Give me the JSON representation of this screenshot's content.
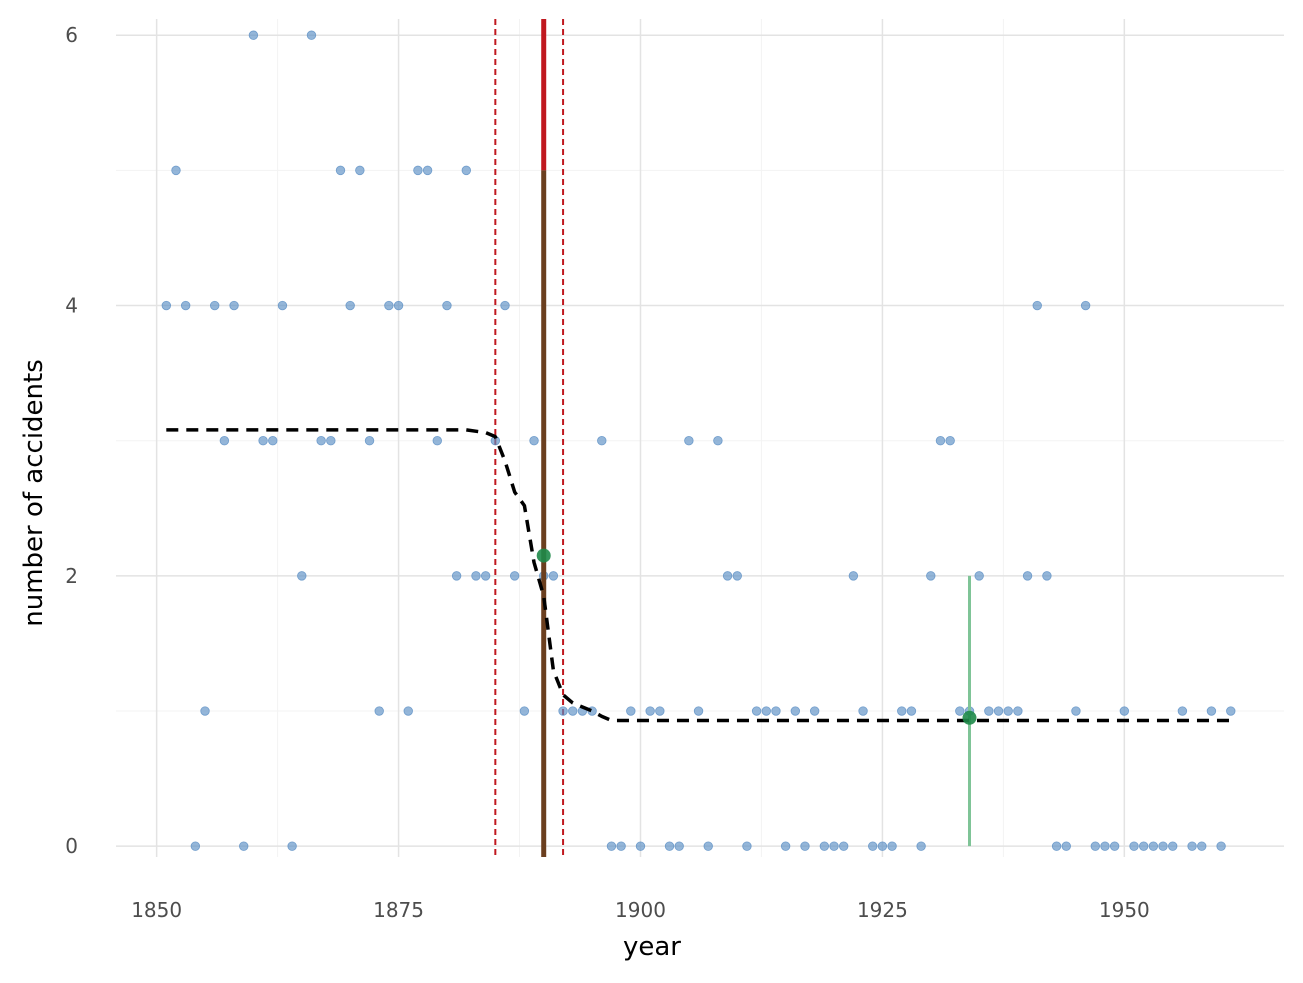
{
  "chart_data": {
    "type": "scatter",
    "xlabel": "year",
    "ylabel": "number of accidents",
    "xlim": [
      1845.8,
      1966.5
    ],
    "ylim": [
      -0.08,
      6.12
    ],
    "x_ticks": [
      1850,
      1875,
      1900,
      1925,
      1950
    ],
    "y_ticks": [
      0,
      2,
      4,
      6
    ],
    "grid": true,
    "colors": {
      "points": "#5b8fc4",
      "fit_line": "#000000",
      "changepoint": "#c0181f",
      "changepoint_lower": "#6b3f1f",
      "interval": "#c0181f",
      "highlight_point": "#1e8a49",
      "highlight_bar": "#7fc497"
    },
    "points": {
      "x": [
        1851,
        1852,
        1853,
        1854,
        1855,
        1856,
        1857,
        1858,
        1859,
        1860,
        1861,
        1862,
        1863,
        1864,
        1865,
        1866,
        1867,
        1868,
        1869,
        1870,
        1871,
        1872,
        1873,
        1874,
        1875,
        1876,
        1877,
        1878,
        1879,
        1880,
        1881,
        1882,
        1883,
        1884,
        1885,
        1886,
        1887,
        1888,
        1889,
        1890,
        1891,
        1892,
        1893,
        1894,
        1895,
        1896,
        1897,
        1898,
        1899,
        1900,
        1901,
        1902,
        1903,
        1904,
        1905,
        1906,
        1907,
        1908,
        1909,
        1910,
        1911,
        1912,
        1913,
        1914,
        1915,
        1916,
        1917,
        1918,
        1919,
        1920,
        1921,
        1922,
        1923,
        1924,
        1925,
        1926,
        1927,
        1928,
        1929,
        1930,
        1931,
        1932,
        1933,
        1934,
        1935,
        1936,
        1937,
        1938,
        1939,
        1940,
        1941,
        1942,
        1943,
        1944,
        1945,
        1946,
        1947,
        1948,
        1949,
        1950,
        1951,
        1952,
        1953,
        1954,
        1955,
        1956,
        1957,
        1958,
        1959,
        1960,
        1961
      ],
      "y": [
        4,
        5,
        4,
        0,
        1,
        4,
        3,
        4,
        0,
        6,
        3,
        3,
        4,
        0,
        2,
        6,
        3,
        3,
        5,
        4,
        5,
        3,
        1,
        4,
        4,
        1,
        5,
        5,
        3,
        4,
        2,
        5,
        2,
        2,
        3,
        4,
        2,
        1,
        3,
        2,
        2,
        1,
        1,
        1,
        1,
        3,
        0,
        0,
        1,
        0,
        1,
        1,
        0,
        0,
        3,
        1,
        0,
        3,
        2,
        2,
        0,
        1,
        1,
        1,
        0,
        1,
        0,
        1,
        0,
        0,
        0,
        2,
        1,
        0,
        0,
        0,
        1,
        1,
        0,
        2,
        3,
        3,
        1,
        1,
        2,
        1,
        1,
        1,
        1,
        2,
        4,
        2,
        0,
        0,
        1,
        4,
        0,
        0,
        0,
        1,
        0,
        0,
        0,
        0,
        0,
        1,
        0,
        0,
        1,
        0,
        1
      ]
    },
    "fit_line": {
      "x": [
        1851,
        1882,
        1884,
        1885,
        1886,
        1887,
        1888,
        1889,
        1890,
        1891,
        1892,
        1893,
        1894,
        1895,
        1896,
        1897,
        1961
      ],
      "y": [
        3.08,
        3.08,
        3.06,
        3.03,
        2.85,
        2.62,
        2.52,
        2.1,
        1.85,
        1.3,
        1.12,
        1.06,
        1.03,
        1.0,
        0.96,
        0.93,
        0.93
      ]
    },
    "changepoint": {
      "x": 1890,
      "y_top": 6.12,
      "y_split": 5.0
    },
    "changepoint_interval": [
      1885,
      1892
    ],
    "highlight_points": [
      {
        "x": 1890,
        "y": 2.15
      },
      {
        "x": 1934,
        "y": 0.95,
        "bar_low": 0,
        "bar_high": 2
      }
    ]
  }
}
